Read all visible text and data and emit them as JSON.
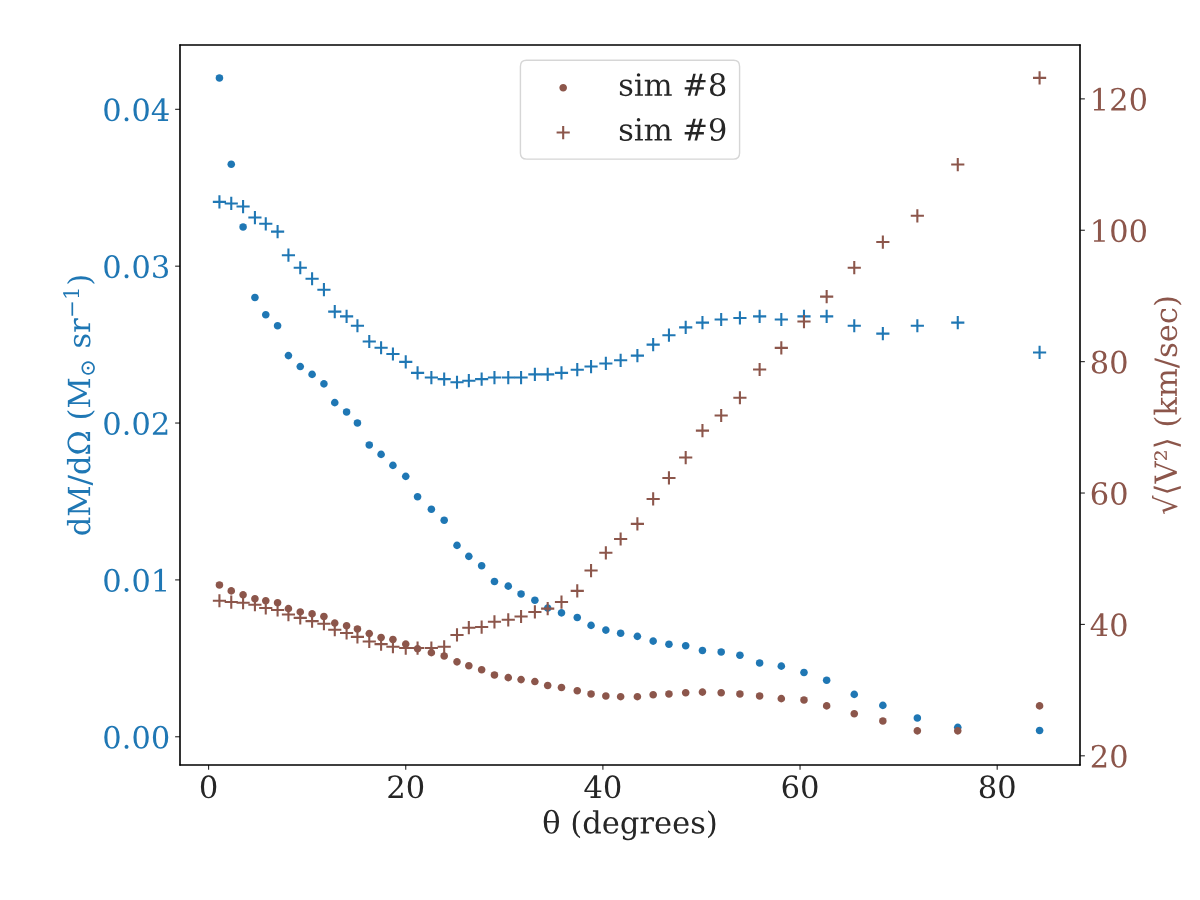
{
  "chart_data": {
    "type": "scatter",
    "xlabel": "θ (degrees)",
    "ylabel": "dM/dΩ (M$_{⊙}$ sr$^{−1}$)",
    "y2label": "√⟨V²⟩ (km/sec)",
    "x": [
      1.1,
      2.3,
      3.5,
      4.7,
      5.8,
      7.0,
      8.1,
      9.3,
      10.5,
      11.7,
      12.8,
      14.0,
      15.1,
      16.3,
      17.5,
      18.7,
      20.0,
      21.2,
      22.6,
      23.9,
      25.2,
      26.4,
      27.7,
      29.0,
      30.4,
      31.7,
      33.1,
      34.4,
      35.8,
      37.4,
      38.8,
      40.3,
      41.8,
      43.5,
      45.1,
      46.7,
      48.4,
      50.1,
      52.0,
      53.9,
      55.9,
      58.1,
      60.4,
      62.7,
      65.5,
      68.4,
      71.9,
      76.0,
      84.3
    ],
    "series": [
      {
        "color": "#1f77b4",
        "marker": "circle",
        "values": [
          0.042,
          0.0365,
          0.0325,
          0.028,
          0.0269,
          0.0262,
          0.0243,
          0.0236,
          0.0231,
          0.0225,
          0.0213,
          0.0207,
          0.02,
          0.0186,
          0.018,
          0.0173,
          0.0166,
          0.0153,
          0.0145,
          0.0138,
          0.0122,
          0.0115,
          0.0109,
          0.0099,
          0.0096,
          0.0091,
          0.0087,
          0.0082,
          0.0079,
          0.0076,
          0.0071,
          0.0068,
          0.0066,
          0.0064,
          0.0061,
          0.0059,
          0.0058,
          0.0055,
          0.0054,
          0.0052,
          0.0047,
          0.0045,
          0.0041,
          0.0036,
          0.0027,
          0.002,
          0.0012,
          0.0006,
          0.0004
        ]
      },
      {
        "color": "#1f77b4",
        "marker": "cross",
        "values": [
          0.0341,
          0.034,
          0.0338,
          0.0331,
          0.0327,
          0.0322,
          0.0307,
          0.0299,
          0.0292,
          0.0285,
          0.0271,
          0.0268,
          0.0262,
          0.0252,
          0.0248,
          0.0244,
          0.0239,
          0.0232,
          0.0229,
          0.0228,
          0.0226,
          0.0227,
          0.0228,
          0.0229,
          0.0229,
          0.0229,
          0.0231,
          0.0231,
          0.0232,
          0.0234,
          0.0236,
          0.0238,
          0.024,
          0.0243,
          0.025,
          0.0256,
          0.0261,
          0.0264,
          0.0266,
          0.0267,
          0.0268,
          0.0266,
          0.0268,
          0.0268,
          0.0262,
          0.0257,
          0.0262,
          0.0264,
          0.0245
        ]
      },
      {
        "name": "sim #8",
        "color": "#8c564b",
        "marker": "circle",
        "axis": "y2",
        "values": [
          46.0,
          45.1,
          44.5,
          43.9,
          43.6,
          43.3,
          42.4,
          41.9,
          41.6,
          41.2,
          40.2,
          39.8,
          39.3,
          38.6,
          38.0,
          37.7,
          37.0,
          36.3,
          35.7,
          35.2,
          34.3,
          33.7,
          33.1,
          32.3,
          31.9,
          31.6,
          31.3,
          30.7,
          30.4,
          29.9,
          29.4,
          29.1,
          29.0,
          29.0,
          29.3,
          29.4,
          29.6,
          29.7,
          29.6,
          29.4,
          29.1,
          28.7,
          28.5,
          27.6,
          26.4,
          25.3,
          23.8,
          23.8,
          27.6
        ]
      },
      {
        "name": "sim #9",
        "color": "#8c564b",
        "marker": "cross",
        "axis": "y2",
        "values": [
          43.6,
          43.4,
          43.3,
          43.0,
          42.5,
          42.2,
          41.5,
          41.0,
          40.5,
          40.1,
          39.2,
          38.7,
          38.1,
          37.4,
          37.0,
          36.6,
          36.4,
          36.4,
          36.4,
          36.6,
          38.4,
          39.5,
          39.6,
          40.4,
          40.7,
          41.2,
          41.9,
          42.4,
          43.4,
          45.1,
          48.2,
          50.9,
          53.0,
          55.3,
          59.1,
          62.3,
          65.4,
          69.5,
          71.8,
          74.5,
          78.8,
          82.1,
          86.1,
          89.9,
          94.3,
          98.2,
          102.2,
          110.0,
          123.2
        ]
      }
    ],
    "xlim": [
      -2.9,
      88.4
    ],
    "xticks": [
      0,
      20,
      40,
      60,
      80
    ],
    "ylim": [
      -0.0018,
      0.0441
    ],
    "yticks": [
      {
        "value": 0,
        "label": "0.00"
      },
      {
        "value": 0.01,
        "label": "0.01"
      },
      {
        "value": 0.02,
        "label": "0.02"
      },
      {
        "value": 0.03,
        "label": "0.03"
      },
      {
        "value": 0.04,
        "label": "0.04"
      }
    ],
    "y2lim": [
      18.6,
      128.2
    ],
    "y2ticks": [
      20,
      40,
      60,
      80,
      100,
      120
    ],
    "grid": false,
    "legend": "top"
  }
}
